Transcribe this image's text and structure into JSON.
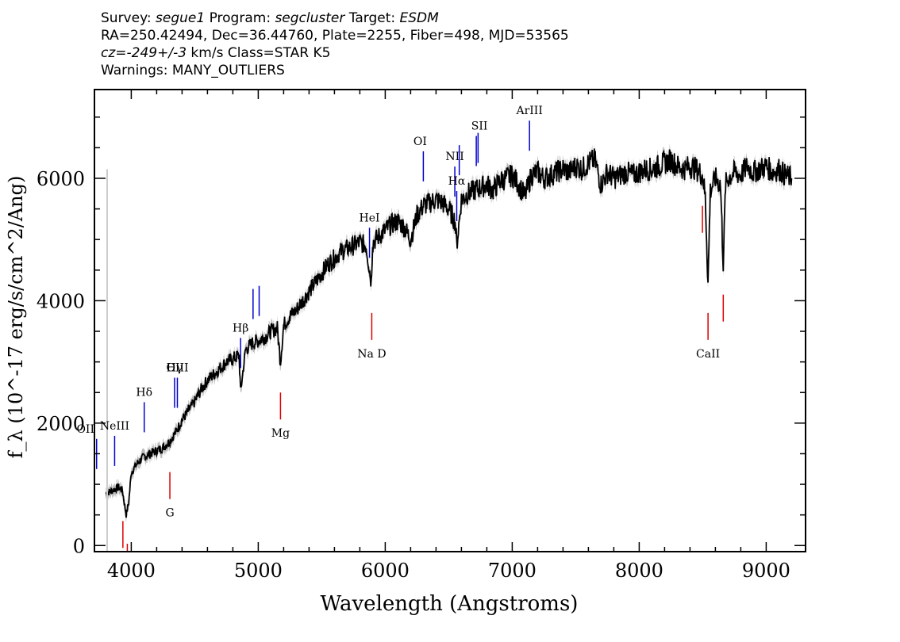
{
  "header": {
    "survey_label": "Survey: ",
    "survey": "segue1",
    "program_label": " Program: ",
    "program": "segcluster",
    "target_label": " Target: ",
    "target": "ESDM",
    "line2": "RA=250.42494, Dec=36.44760, Plate=2255, Fiber=498, MJD=53565",
    "cz": "cz=-249+/-3",
    "cz_rest": " km/s Class=STAR K5",
    "warnings": "Warnings: MANY_OUTLIERS"
  },
  "colors": {
    "spectrum": "#000000",
    "error_band": "#bbbbbb",
    "emission_lines": "#0000cc",
    "absorption_lines": "#dd0000",
    "axes": "#000000"
  },
  "chart_data": {
    "type": "line",
    "xlabel": "Wavelength (Angstroms)",
    "ylabel": "f_λ (10^-17 erg/s/cm^2/Ang)",
    "xlim": [
      3710,
      9310
    ],
    "ylim": [
      -100,
      7450
    ],
    "x_ticks": [
      4000,
      5000,
      6000,
      7000,
      8000,
      9000
    ],
    "y_ticks": [
      0,
      2000,
      4000,
      6000
    ],
    "grid": false,
    "series": [
      {
        "x": [
          3800,
          3850,
          3900,
          3930,
          3960,
          3980,
          4000,
          4050,
          4100,
          4150,
          4200,
          4250,
          4300,
          4350,
          4400,
          4450,
          4500,
          4550,
          4600,
          4650,
          4700,
          4750,
          4800,
          4850,
          4860,
          4900,
          4950,
          5000,
          5050,
          5100,
          5150,
          5175,
          5200,
          5250,
          5300,
          5350,
          5400,
          5450,
          5500,
          5550,
          5600,
          5650,
          5700,
          5750,
          5800,
          5850,
          5890,
          5900,
          5950,
          6000,
          6050,
          6100,
          6150,
          6200,
          6250,
          6300,
          6350,
          6400,
          6450,
          6500,
          6550,
          6563,
          6600,
          6650,
          6700,
          6750,
          6800,
          6850,
          6900,
          6950,
          7000,
          7050,
          7100,
          7150,
          7200,
          7250,
          7300,
          7350,
          7400,
          7450,
          7500,
          7550,
          7600,
          7650,
          7700,
          7750,
          7800,
          7850,
          7900,
          7950,
          8000,
          8050,
          8100,
          8150,
          8200,
          8250,
          8300,
          8350,
          8400,
          8450,
          8500,
          8520,
          8542,
          8560,
          8600,
          8640,
          8662,
          8680,
          8700,
          8750,
          8800,
          8850,
          8900,
          8950,
          9000,
          9050,
          9100,
          9150,
          9200
        ],
        "y": [
          850,
          900,
          950,
          900,
          500,
          700,
          1200,
          1350,
          1450,
          1500,
          1550,
          1600,
          1700,
          1850,
          2050,
          2200,
          2350,
          2550,
          2700,
          2800,
          2900,
          3000,
          3050,
          3100,
          2500,
          3200,
          3300,
          3350,
          3400,
          3500,
          3550,
          3000,
          3600,
          3750,
          3850,
          4000,
          4150,
          4300,
          4450,
          4600,
          4700,
          4800,
          4850,
          4900,
          4950,
          4900,
          4300,
          4950,
          5050,
          5150,
          5250,
          5300,
          5200,
          5000,
          5400,
          5550,
          5600,
          5650,
          5600,
          5500,
          5300,
          4900,
          5650,
          5750,
          5800,
          5850,
          5900,
          5800,
          5950,
          6000,
          6050,
          5900,
          5700,
          6050,
          6100,
          6000,
          6050,
          6100,
          6150,
          6100,
          6200,
          6150,
          6250,
          6300,
          5900,
          6100,
          6000,
          6050,
          6100,
          6050,
          6100,
          6150,
          6150,
          6200,
          6250,
          6300,
          6200,
          6150,
          6200,
          6150,
          6050,
          5700,
          4300,
          5800,
          6000,
          5900,
          4600,
          5900,
          6000,
          6100,
          6050,
          6200,
          6100,
          6150,
          6200,
          6100,
          6150,
          6050,
          6000
        ]
      }
    ],
    "line_markers": [
      {
        "label": "OII",
        "x": 3727,
        "kind": "emission"
      },
      {
        "label": "NeIII",
        "x": 3869,
        "kind": "emission"
      },
      {
        "label": "Hδ",
        "x": 4102,
        "kind": "emission"
      },
      {
        "label": "Hγ",
        "x": 4341,
        "kind": "emission"
      },
      {
        "label": "OIII",
        "x": 4363,
        "kind": "emission"
      },
      {
        "label": "Hβ",
        "x": 4861,
        "kind": "emission"
      },
      {
        "label": "OIII",
        "x": 4959,
        "kind": "emission"
      },
      {
        "label": "OIII",
        "x": 5007,
        "kind": "emission"
      },
      {
        "label": "HeI",
        "x": 5876,
        "kind": "emission"
      },
      {
        "label": "OI",
        "x": 6300,
        "kind": "emission"
      },
      {
        "label": "NII",
        "x": 6548,
        "kind": "emission"
      },
      {
        "label": "Hα",
        "x": 6563,
        "kind": "emission"
      },
      {
        "label": "NII",
        "x": 6583,
        "kind": "emission"
      },
      {
        "label": "SII",
        "x": 6717,
        "kind": "emission"
      },
      {
        "label": "SII",
        "x": 6731,
        "kind": "emission"
      },
      {
        "label": "ArIII",
        "x": 7136,
        "kind": "emission"
      },
      {
        "label": "",
        "x": 3934,
        "kind": "absorption"
      },
      {
        "label": "",
        "x": 3969,
        "kind": "absorption"
      },
      {
        "label": "G",
        "x": 4304,
        "kind": "absorption"
      },
      {
        "label": "Mg",
        "x": 5175,
        "kind": "absorption"
      },
      {
        "label": "Na D",
        "x": 5894,
        "kind": "absorption"
      },
      {
        "label": "",
        "x": 8498,
        "kind": "absorption"
      },
      {
        "label": "CaII",
        "x": 8542,
        "kind": "absorption"
      },
      {
        "label": "",
        "x": 8662,
        "kind": "absorption"
      }
    ]
  }
}
